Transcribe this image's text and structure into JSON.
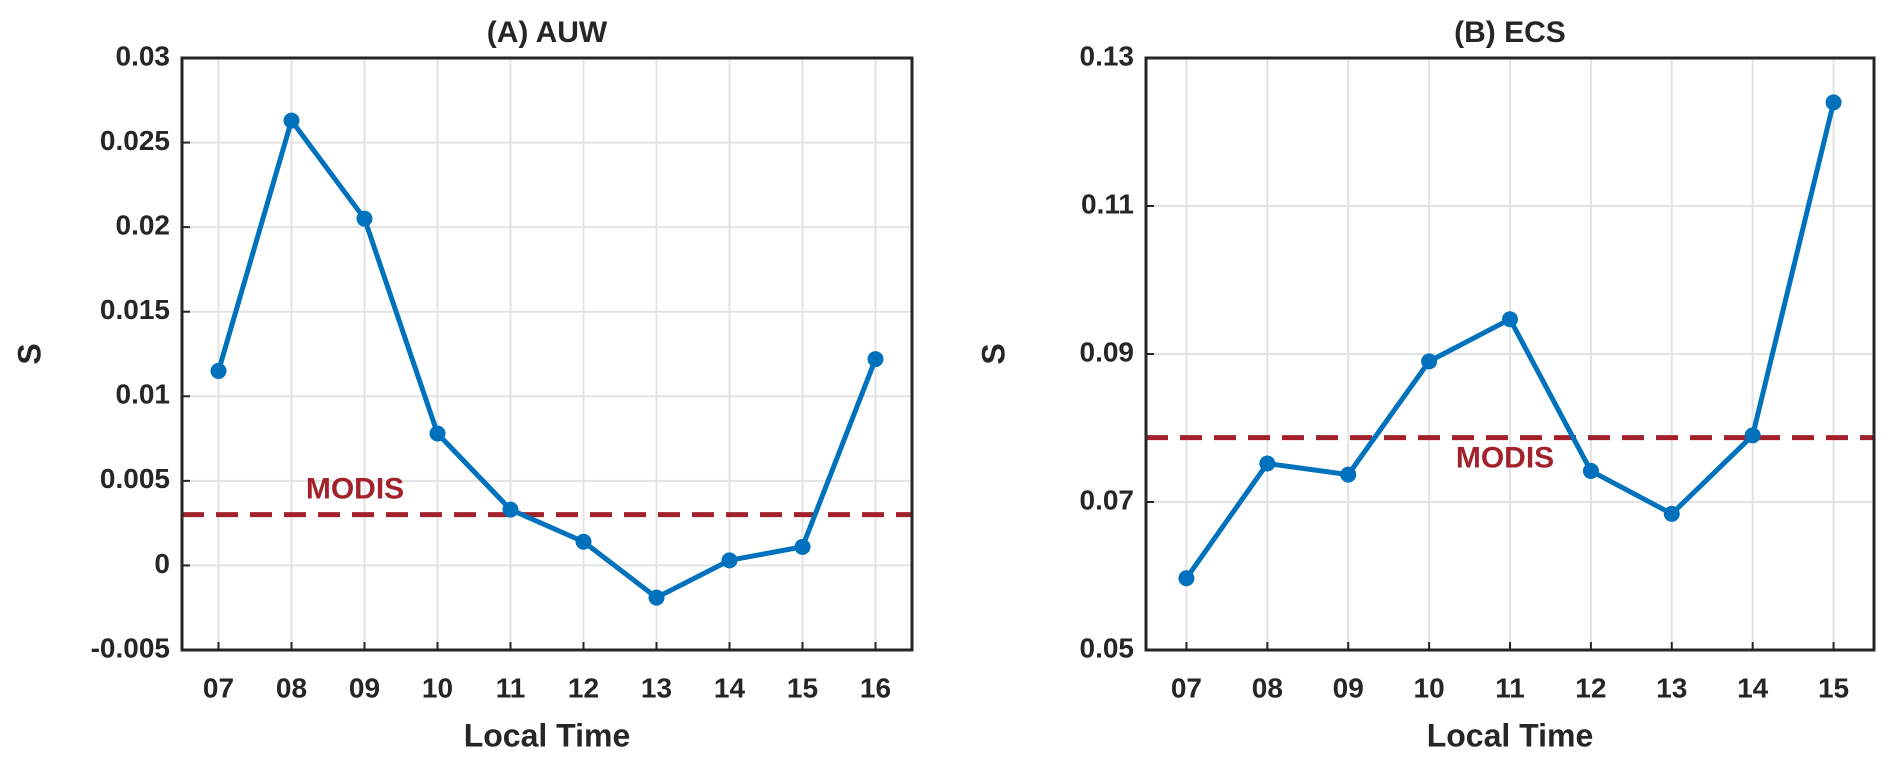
{
  "chart_data": [
    {
      "type": "line",
      "title": "(A) AUW",
      "xlabel": "Local Time",
      "ylabel": "S",
      "categories": [
        "07",
        "08",
        "09",
        "10",
        "11",
        "12",
        "13",
        "14",
        "15",
        "16"
      ],
      "values": [
        0.0115,
        0.0263,
        0.0205,
        0.0078,
        0.0033,
        0.0014,
        -0.0019,
        0.0003,
        0.0011,
        0.0122
      ],
      "color": "#0072bd",
      "ylim": [
        -0.005,
        0.03
      ],
      "yticks": [
        -0.005,
        0,
        0.005,
        0.01,
        0.015,
        0.02,
        0.025,
        0.03
      ],
      "grid": true,
      "reference_lines": [
        {
          "label": "MODIS",
          "value": 0.003,
          "color": "#a2212a"
        }
      ]
    },
    {
      "type": "line",
      "title": "(B) ECS",
      "xlabel": "Local Time",
      "ylabel": "S",
      "categories": [
        "07",
        "08",
        "09",
        "10",
        "11",
        "12",
        "13",
        "14",
        "15"
      ],
      "values": [
        0.0597,
        0.0752,
        0.0737,
        0.089,
        0.0947,
        0.0742,
        0.0684,
        0.079,
        0.124
      ],
      "color": "#0072bd",
      "ylim": [
        0.05,
        0.13
      ],
      "yticks": [
        0.05,
        0.07,
        0.09,
        0.11,
        0.13
      ],
      "grid": true,
      "reference_lines": [
        {
          "label": "MODIS",
          "value": 0.0787,
          "color": "#a2212a"
        }
      ]
    }
  ]
}
